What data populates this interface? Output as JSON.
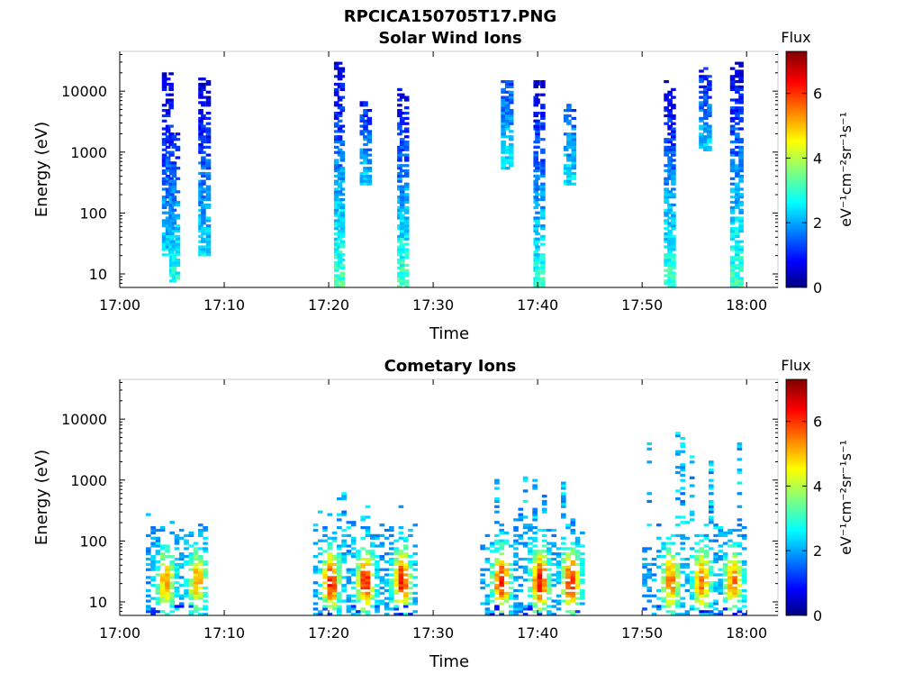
{
  "figure_title": "RPCICA150705T17.PNG",
  "chart_data": [
    {
      "type": "heatmap",
      "title": "Solar Wind Ions",
      "xlabel": "Time",
      "ylabel": "Energy (eV)",
      "x_ticks": [
        "17:00",
        "17:10",
        "17:20",
        "17:30",
        "17:40",
        "17:50",
        "18:00"
      ],
      "x_range_minutes": [
        0,
        63
      ],
      "y_scale": "log",
      "y_ticks": [
        10,
        100,
        1000,
        10000
      ],
      "y_tick_labels": [
        "10",
        "100",
        "1000",
        "10000"
      ],
      "y_range": [
        6,
        45000
      ],
      "colorbar": {
        "title": "Flux",
        "unit": "eV⁻¹cm⁻²sr⁻¹s⁻¹",
        "range": [
          0,
          7.3
        ],
        "ticks": [
          "0",
          "2",
          "4",
          "6"
        ]
      },
      "grid": false,
      "bursts": [
        {
          "t": 4.5,
          "e_low": 20,
          "e_high": 20000,
          "flux_low_energy": 2.5,
          "flux_high_energy": 0.5
        },
        {
          "t": 5.2,
          "e_low": 7,
          "e_high": 2000,
          "flux_low_energy": 3.0,
          "flux_high_energy": 1.0
        },
        {
          "t": 8.0,
          "e_low": 20,
          "e_high": 18000,
          "flux_low_energy": 2.6,
          "flux_high_energy": 0.5
        },
        {
          "t": 21.0,
          "e_low": 6,
          "e_high": 30000,
          "flux_low_energy": 3.3,
          "flux_high_energy": 0.6
        },
        {
          "t": 23.5,
          "e_low": 300,
          "e_high": 7000,
          "flux_low_energy": 2.5,
          "flux_high_energy": 1.0
        },
        {
          "t": 27.0,
          "e_low": 6,
          "e_high": 12000,
          "flux_low_energy": 3.3,
          "flux_high_energy": 0.6
        },
        {
          "t": 37.0,
          "e_low": 500,
          "e_high": 15000,
          "flux_low_energy": 2.5,
          "flux_high_energy": 1.5
        },
        {
          "t": 40.0,
          "e_low": 6,
          "e_high": 15000,
          "flux_low_energy": 3.0,
          "flux_high_energy": 0.6
        },
        {
          "t": 43.0,
          "e_low": 300,
          "e_high": 6000,
          "flux_low_energy": 2.6,
          "flux_high_energy": 1.5
        },
        {
          "t": 52.5,
          "e_low": 6,
          "e_high": 15000,
          "flux_low_energy": 3.2,
          "flux_high_energy": 0.6
        },
        {
          "t": 56.0,
          "e_low": 1000,
          "e_high": 25000,
          "flux_low_energy": 2.5,
          "flux_high_energy": 1.0
        },
        {
          "t": 59.0,
          "e_low": 6,
          "e_high": 30000,
          "flux_low_energy": 3.2,
          "flux_high_energy": 0.6
        }
      ]
    },
    {
      "type": "heatmap",
      "title": "Cometary Ions",
      "xlabel": "Time",
      "ylabel": "Energy (eV)",
      "x_ticks": [
        "17:00",
        "17:10",
        "17:20",
        "17:30",
        "17:40",
        "17:50",
        "18:00"
      ],
      "x_range_minutes": [
        0,
        63
      ],
      "y_scale": "log",
      "y_ticks": [
        10,
        100,
        1000,
        10000
      ],
      "y_tick_labels": [
        "10",
        "100",
        "1000",
        "10000"
      ],
      "y_range": [
        6,
        45000
      ],
      "colorbar": {
        "title": "Flux",
        "unit": "eV⁻¹cm⁻²sr⁻¹s⁻¹",
        "range": [
          0,
          7.3
        ],
        "ticks": [
          "0",
          "2",
          "4",
          "6"
        ]
      },
      "grid": false,
      "clusters": [
        {
          "t_start": 2.5,
          "t_end": 8.5,
          "e_low": 6,
          "e_high": 300,
          "peaks": [
            4.2,
            7.2
          ],
          "peak_flux": 5.5
        },
        {
          "t_start": 18.5,
          "t_end": 28.5,
          "e_low": 6,
          "e_high": 700,
          "peaks": [
            20.0,
            23.3,
            26.8
          ],
          "peak_flux": 6.5
        },
        {
          "t_start": 34.5,
          "t_end": 44.5,
          "e_low": 6,
          "e_high": 1300,
          "peaks": [
            36.3,
            40.0,
            43.0
          ],
          "peak_flux": 6.6
        },
        {
          "t_start": 50.0,
          "t_end": 60.0,
          "e_low": 6,
          "e_high": 8500,
          "peaks": [
            52.5,
            55.5,
            58.5
          ],
          "peak_flux": 5.8
        }
      ]
    }
  ]
}
